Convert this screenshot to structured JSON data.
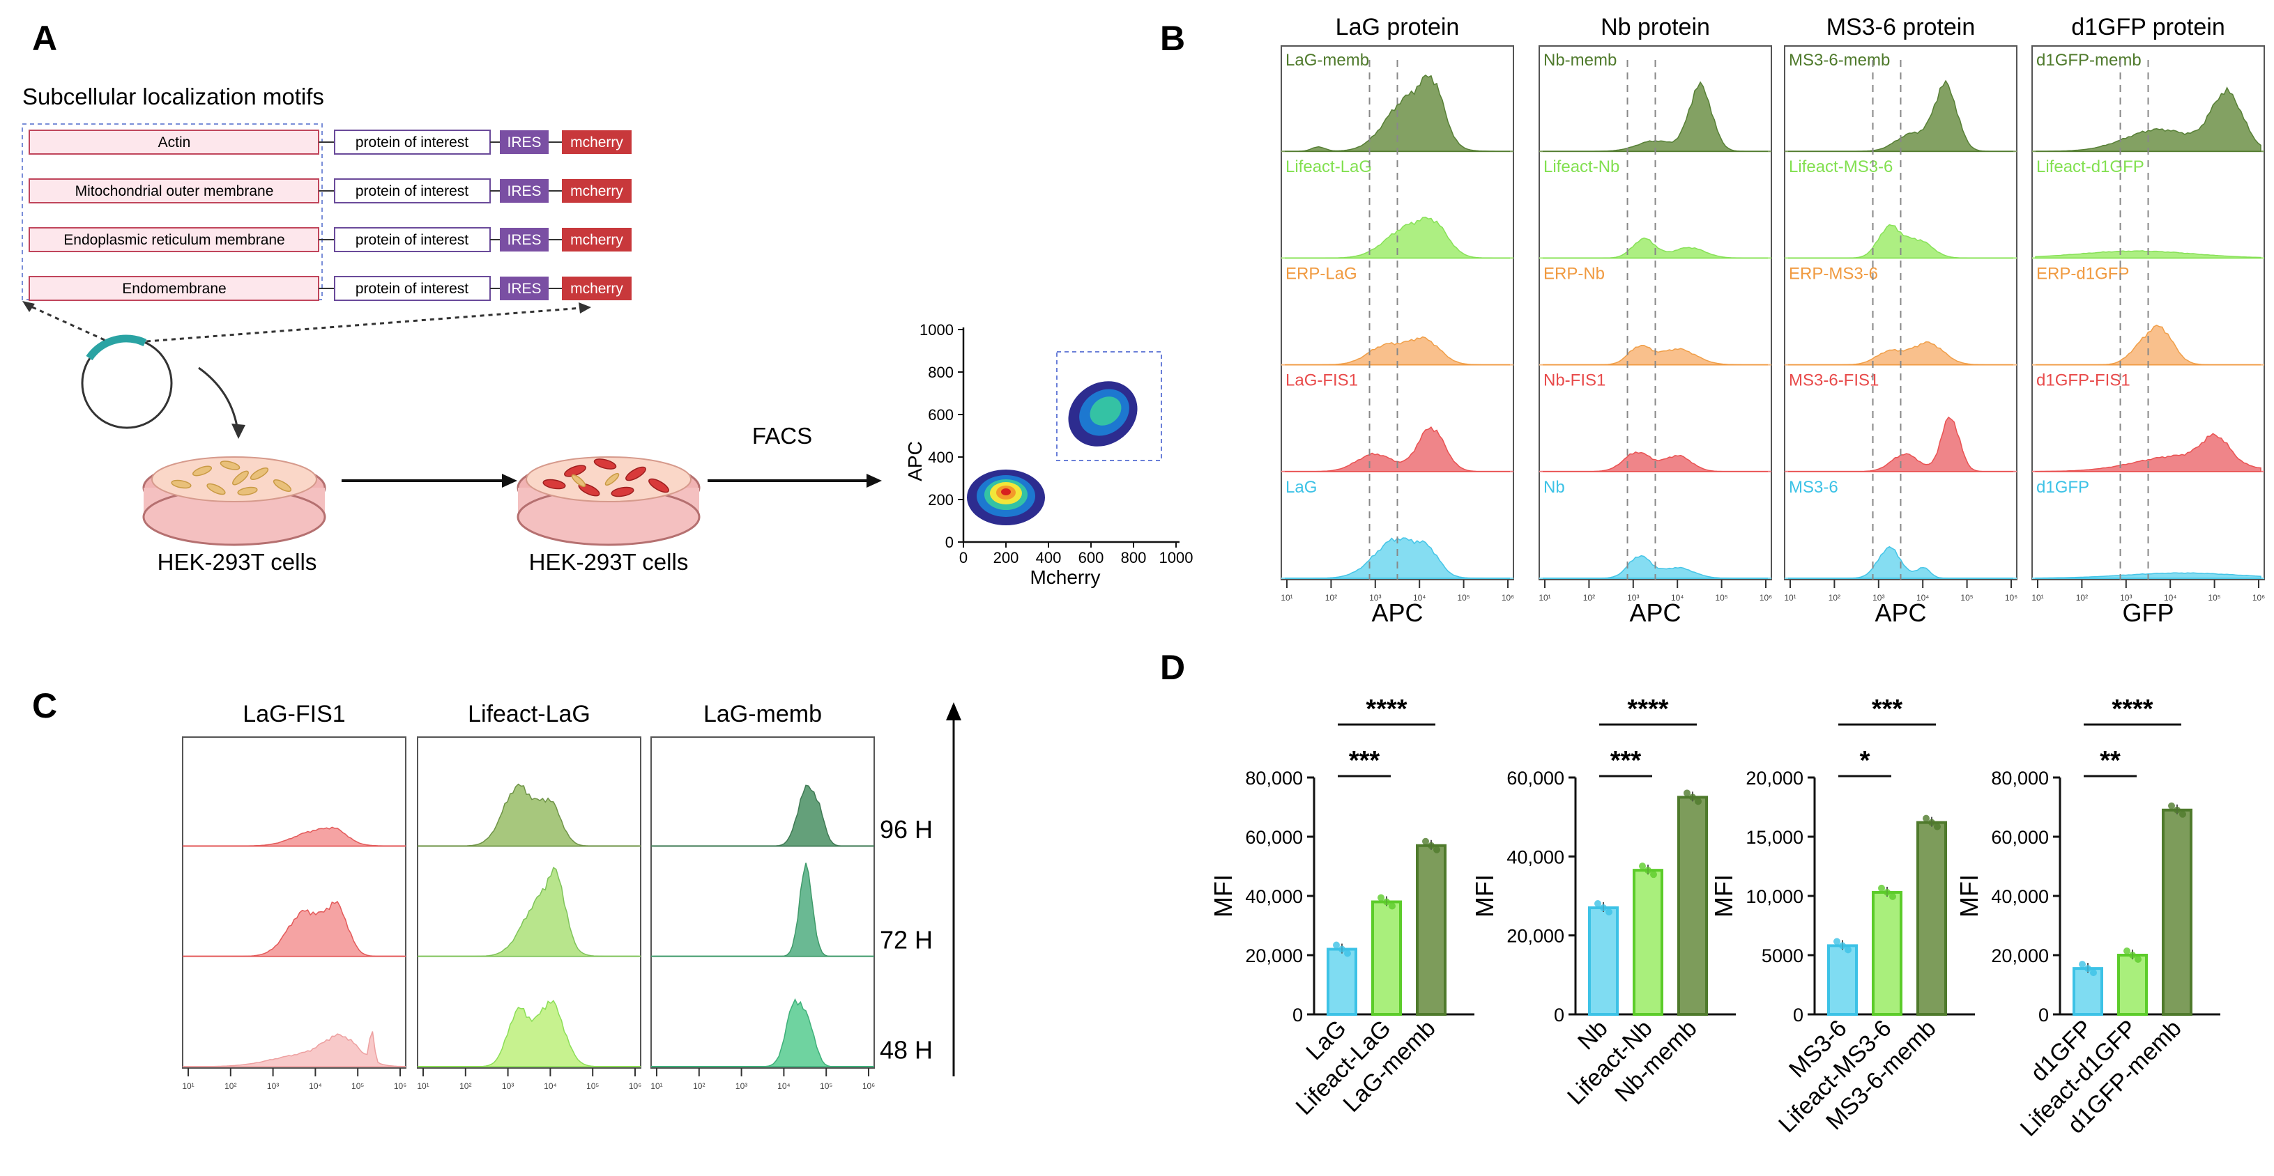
{
  "panels": {
    "a": "A",
    "b": "B",
    "c": "C",
    "d": "D"
  },
  "panel_a": {
    "motif_title": "Subcellular localization motifs",
    "rows": [
      {
        "motif": "Actin",
        "poi": "protein of  interest",
        "ires": "IRES",
        "reporter": "mcherry"
      },
      {
        "motif": "Mitochondrial outer membrane",
        "poi": "protein of  interest",
        "ires": "IRES",
        "reporter": "mcherry"
      },
      {
        "motif": "Endoplasmic reticulum membrane",
        "poi": "protein of  interest",
        "ires": "IRES",
        "reporter": "mcherry"
      },
      {
        "motif": "Endomembrane",
        "poi": "protein of  interest",
        "ires": "IRES",
        "reporter": "mcherry"
      }
    ],
    "dish1_label": "HEK-293T cells",
    "dish2_label": "HEK-293T cells",
    "facs_label": "FACS",
    "scatter": {
      "xlabel": "Mcherry",
      "ylabel": "APC",
      "xticks": [
        "0",
        "200",
        "400",
        "600",
        "800",
        "1000"
      ],
      "yticks": [
        "0",
        "200",
        "400",
        "600",
        "800",
        "1000"
      ]
    },
    "colors": {
      "motif_fill": "#fde7ec",
      "motif_border": "#c0455b",
      "poi_border": "#6a4a9a",
      "ires": "#7a4fa3",
      "mcherry": "#c8383b",
      "plasmid": "#2aa3a3"
    }
  },
  "chart_data": [
    {
      "id": "B",
      "type": "histogram",
      "columns": [
        {
          "title": "LaG protein",
          "xlabel": "APC",
          "labels": [
            "LaG-memb",
            "Lifeact-LaG",
            "ERP-LaG",
            "LaG-FIS1",
            "LaG"
          ]
        },
        {
          "title": "Nb protein",
          "xlabel": "APC",
          "labels": [
            "Nb-memb",
            "Lifeact-Nb",
            "ERP-Nb",
            "Nb-FIS1",
            "Nb"
          ]
        },
        {
          "title": "MS3-6 protein",
          "xlabel": "APC",
          "labels": [
            "MS3-6-memb",
            "Lifeact-MS3-6",
            "ERP-MS3-6",
            "MS3-6-FIS1",
            "MS3-6"
          ]
        },
        {
          "title": "d1GFP protein",
          "xlabel": "GFP",
          "labels": [
            "d1GFP-memb",
            "Lifeact-d1GFP",
            "ERP-d1GFP",
            "d1GFP-FIS1",
            "d1GFP"
          ]
        }
      ],
      "row_colors": [
        "#7d9c5b",
        "#a9ef7c",
        "#f9bd86",
        "#ef7f83",
        "#7fdcf2"
      ],
      "row_label_colors": [
        "#4f7a2c",
        "#82e050",
        "#f09a40",
        "#e84a4a",
        "#3cc2e6"
      ],
      "xticks": [
        "10¹",
        "10²",
        "10³",
        "10⁴",
        "10⁵",
        "10⁶"
      ]
    },
    {
      "id": "C",
      "type": "histogram",
      "columns": [
        "LaG-FIS1",
        "Lifeact-LaG",
        "LaG-memb"
      ],
      "rows": [
        "96 H",
        "72 H",
        "48 H"
      ],
      "xticks": [
        "10¹",
        "10²",
        "10³",
        "10⁴",
        "10⁵",
        "10⁶"
      ]
    },
    {
      "id": "D",
      "type": "bar",
      "ylabel": "MFI",
      "groups": [
        {
          "categories": [
            "LaG",
            "Lifeact-LaG",
            "LaG-memb"
          ],
          "values": [
            22000,
            38000,
            57000
          ],
          "ymax": 80000,
          "yticks": [
            "0",
            "20,000",
            "40,000",
            "60,000",
            "80,000"
          ],
          "sig": [
            {
              "label": "***",
              "from": 0,
              "to": 1
            },
            {
              "label": "****",
              "from": 0,
              "to": 2
            }
          ]
        },
        {
          "categories": [
            "Nb",
            "Lifeact-Nb",
            "Nb-memb"
          ],
          "values": [
            27000,
            36500,
            55000
          ],
          "ymax": 60000,
          "yticks": [
            "0",
            "20,000",
            "40,000",
            "60,000"
          ],
          "sig": [
            {
              "label": "***",
              "from": 0,
              "to": 1
            },
            {
              "label": "****",
              "from": 0,
              "to": 2
            }
          ]
        },
        {
          "categories": [
            "MS3-6",
            "Lifeact-MS3-6",
            "MS3-6-memb"
          ],
          "values": [
            5800,
            10300,
            16200
          ],
          "ymax": 20000,
          "yticks": [
            "0",
            "5000",
            "10,000",
            "15,000",
            "20,000"
          ],
          "sig": [
            {
              "label": "*",
              "from": 0,
              "to": 1
            },
            {
              "label": "***",
              "from": 0,
              "to": 2
            }
          ]
        },
        {
          "categories": [
            "d1GFP",
            "Lifeact-d1GFP",
            "d1GFP-memb"
          ],
          "values": [
            15500,
            20000,
            69000
          ],
          "ymax": 80000,
          "yticks": [
            "0",
            "20,000",
            "40,000",
            "60,000",
            "80,000"
          ],
          "sig": [
            {
              "label": "**",
              "from": 0,
              "to": 1
            },
            {
              "label": "****",
              "from": 0,
              "to": 2
            }
          ]
        }
      ],
      "bar_colors": [
        "#7fdcf2",
        "#a9ef7c",
        "#7d9c5b"
      ],
      "bar_edges": [
        "#3cc2e6",
        "#5ccc2a",
        "#4f7a2c"
      ]
    }
  ]
}
